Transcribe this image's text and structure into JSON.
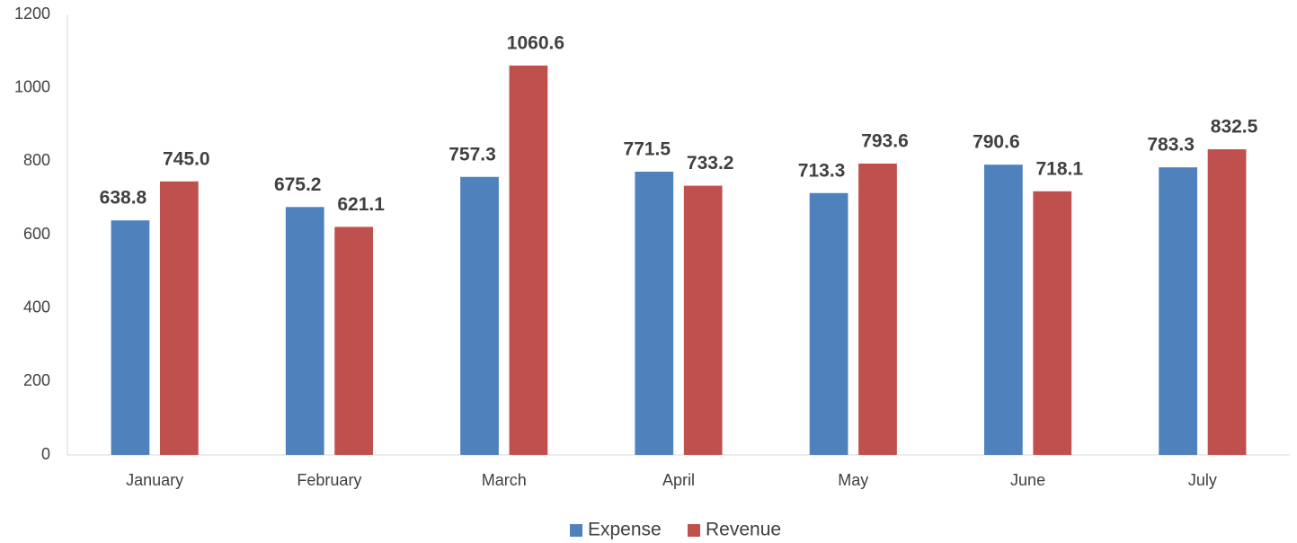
{
  "chart_data": {
    "type": "bar",
    "categories": [
      "January",
      "February",
      "March",
      "April",
      "May",
      "June",
      "July"
    ],
    "series": [
      {
        "name": "Expense",
        "color": "#4f81bd",
        "values": [
          638.8,
          675.2,
          757.3,
          771.5,
          713.3,
          790.6,
          783.3
        ],
        "value_labels": [
          "638.8",
          "675.2",
          "757.3",
          "771.5",
          "713.3",
          "790.6",
          "783.3"
        ]
      },
      {
        "name": "Revenue",
        "color": "#c0504d",
        "values": [
          745.0,
          621.1,
          1060.6,
          733.2,
          793.6,
          718.1,
          832.5
        ],
        "value_labels": [
          "745.0",
          "621.1",
          "1060.6",
          "733.2",
          "793.6",
          "718.1",
          "832.5"
        ]
      }
    ],
    "ylim": [
      0,
      1200
    ],
    "yticks": [
      0,
      200,
      400,
      600,
      800,
      1000,
      1200
    ],
    "grid": false,
    "legend": "bottom"
  }
}
